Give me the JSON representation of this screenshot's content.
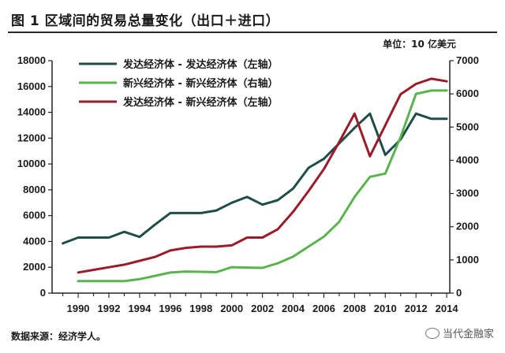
{
  "header": {
    "title": "图 1  区域间的贸易总量变化（出口＋进口）",
    "unit": "单位：10 亿美元"
  },
  "footer": {
    "source": "数据来源：经济学人。",
    "watermark": "当代金融家"
  },
  "chart_data": {
    "type": "line",
    "title": "图 1  区域间的贸易总量变化（出口＋进口）",
    "unit": "单位：10 亿美元",
    "x": [
      1989,
      1990,
      1991,
      1992,
      1993,
      1994,
      1995,
      1996,
      1997,
      1998,
      1999,
      2000,
      2001,
      2002,
      2003,
      2004,
      2005,
      2006,
      2007,
      2008,
      2009,
      2010,
      2011,
      2012,
      2013,
      2014
    ],
    "x_ticks": [
      1990,
      1992,
      1994,
      1996,
      1998,
      2000,
      2002,
      2004,
      2006,
      2008,
      2010,
      2012,
      2014
    ],
    "xlim": [
      1988.3,
      2014.2
    ],
    "y_left": {
      "lim": [
        0,
        18000
      ],
      "ticks": [
        0,
        2000,
        4000,
        6000,
        8000,
        10000,
        12000,
        14000,
        16000,
        18000
      ]
    },
    "y_right": {
      "lim": [
        0,
        7000
      ],
      "ticks": [
        0,
        1000,
        2000,
        3000,
        4000,
        5000,
        6000,
        7000
      ]
    },
    "legend_position": "top-left",
    "grid": false,
    "series": [
      {
        "name": "发达经济体 - 发达经济体（左轴）",
        "axis": "left",
        "color": "#1f4e4a",
        "values": [
          3850,
          4300,
          4300,
          4300,
          4750,
          4350,
          5300,
          6200,
          6200,
          6200,
          6400,
          7000,
          7450,
          6850,
          7200,
          8100,
          9700,
          10400,
          11600,
          12800,
          13900,
          10700,
          11900,
          13900,
          13500,
          13500
        ]
      },
      {
        "name": "新兴经济体 - 新兴经济体（右轴）",
        "axis": "right",
        "color": "#5ab44e",
        "values": [
          null,
          360,
          360,
          360,
          360,
          420,
          520,
          620,
          650,
          640,
          630,
          780,
          770,
          760,
          900,
          1100,
          1400,
          1700,
          2150,
          2900,
          3500,
          3600,
          4700,
          6000,
          6100,
          6100
        ]
      },
      {
        "name": "发达经济体 - 新兴经济体（左轴）",
        "axis": "left",
        "color": "#9b1b2a",
        "values": [
          null,
          1600,
          1800,
          2000,
          2200,
          2500,
          2800,
          3300,
          3500,
          3600,
          3600,
          3700,
          4300,
          4300,
          4950,
          6300,
          7900,
          9600,
          11700,
          13900,
          10600,
          13000,
          15400,
          16200,
          16600,
          16400
        ]
      }
    ]
  }
}
